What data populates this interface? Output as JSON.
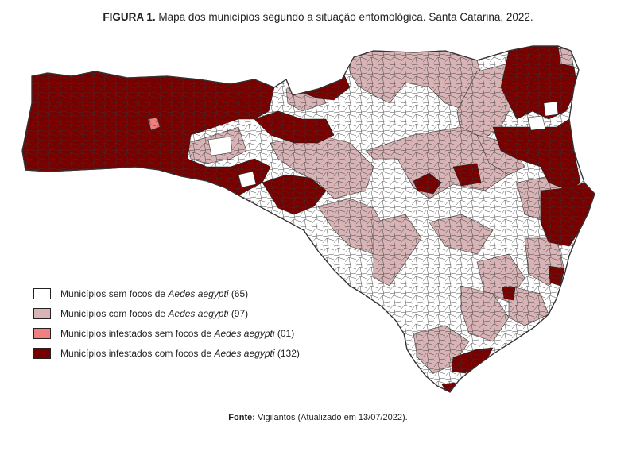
{
  "title": {
    "label": "FIGURA 1.",
    "text": "Mapa dos municípios segundo a situação entomológica. Santa Catarina, 2022."
  },
  "legend": [
    {
      "label": "Municípios sem focos de ",
      "species": "Aedes aegypti",
      "count": "(65)",
      "color": "#ffffff"
    },
    {
      "label": "Municípios com focos de ",
      "species": "Aedes aegypti",
      "count": "(97)",
      "color": "#d8b4b6"
    },
    {
      "label": "Municípios infestados sem focos de ",
      "species": "Aedes aegypti",
      "count": "(01)",
      "color": "#f08080"
    },
    {
      "label": "Municípios infestados com focos de ",
      "species": "Aedes aegypti",
      "count": "(132)",
      "color": "#7a0000"
    }
  ],
  "source": {
    "label": "Fonte:",
    "text": "Vigilantos (Atualizado em 13/07/2022)."
  },
  "colors": {
    "dark_red": "#7a0000",
    "pink": "#d8b4b6",
    "light_red": "#f08080",
    "white": "#ffffff",
    "border": "#333333"
  }
}
